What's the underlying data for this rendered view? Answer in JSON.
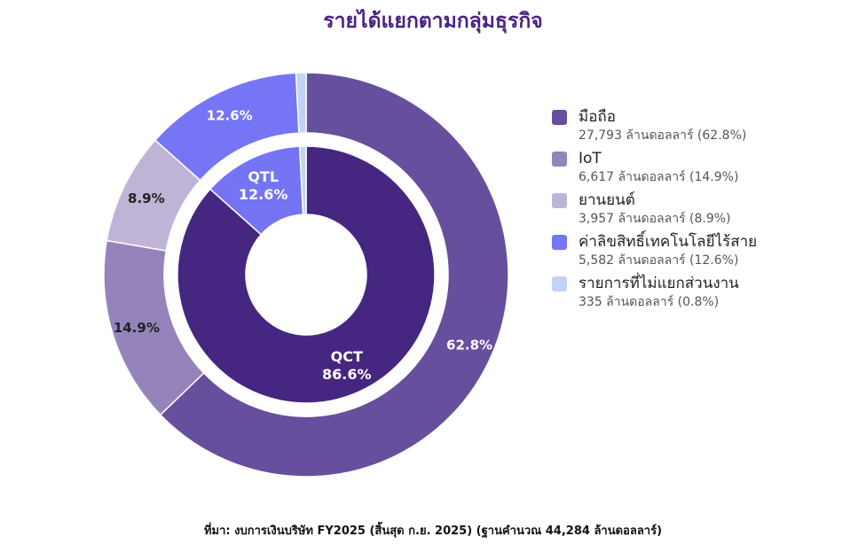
{
  "chart_data": {
    "type": "pie",
    "title": "รายได้แยกตามกลุ่มธุรกิจ",
    "footnote": "ที่มา: งบการเงินบริษัท FY2025 (สิ้นสุด ก.ย. 2025) (ฐานคำนวณ 44,284 ล้านดอลลาร์)",
    "legend_position": "right",
    "inner_ring": [
      {
        "name": "QCT",
        "value": 86.6,
        "label_line1": "QCT",
        "label_line2": "86.6%",
        "color": "#452680"
      },
      {
        "name": "QTL",
        "value": 12.6,
        "label_line1": "QTL",
        "label_line2": "12.6%",
        "color": "#7474f5"
      },
      {
        "name": "other",
        "value": 0.8,
        "color": "#c3d3f7"
      }
    ],
    "outer_ring": [
      {
        "name": "มือถือ",
        "value": 62.8,
        "label": "62.8%",
        "color": "#664f9c"
      },
      {
        "name": "IoT",
        "value": 14.9,
        "label": "14.9%",
        "color": "#9584bc"
      },
      {
        "name": "ยานยนต์",
        "value": 8.9,
        "label": "8.9%",
        "color": "#bfb4d6"
      },
      {
        "name": "ค่าลิขสิทธิ์เทคโนโลยีไร้สาย",
        "value": 12.6,
        "label": "12.6%",
        "color": "#7575f5"
      },
      {
        "name": "รายการที่ไม่แยกส่วนงาน",
        "value": 0.8,
        "label": "",
        "color": "#c3d3f7"
      }
    ],
    "legend": [
      {
        "name": "มือถือ",
        "detail": "27,793 ล้านดอลลาร์ (62.8%)",
        "color": "#664f9c"
      },
      {
        "name": "IoT",
        "detail": "6,617 ล้านดอลลาร์ (14.9%)",
        "color": "#9584bc"
      },
      {
        "name": "ยานยนต์",
        "detail": "3,957 ล้านดอลลาร์ (8.9%)",
        "color": "#bfb4d6"
      },
      {
        "name": "ค่าลิขสิทธิ์เทคโนโลยีไร้สาย",
        "detail": "5,582 ล้านดอลลาร์ (12.6%)",
        "color": "#7575f5"
      },
      {
        "name": "รายการที่ไม่แยกส่วนงาน",
        "detail": "335 ล้านดอลลาร์ (0.8%)",
        "color": "#c3d3f7"
      }
    ]
  }
}
